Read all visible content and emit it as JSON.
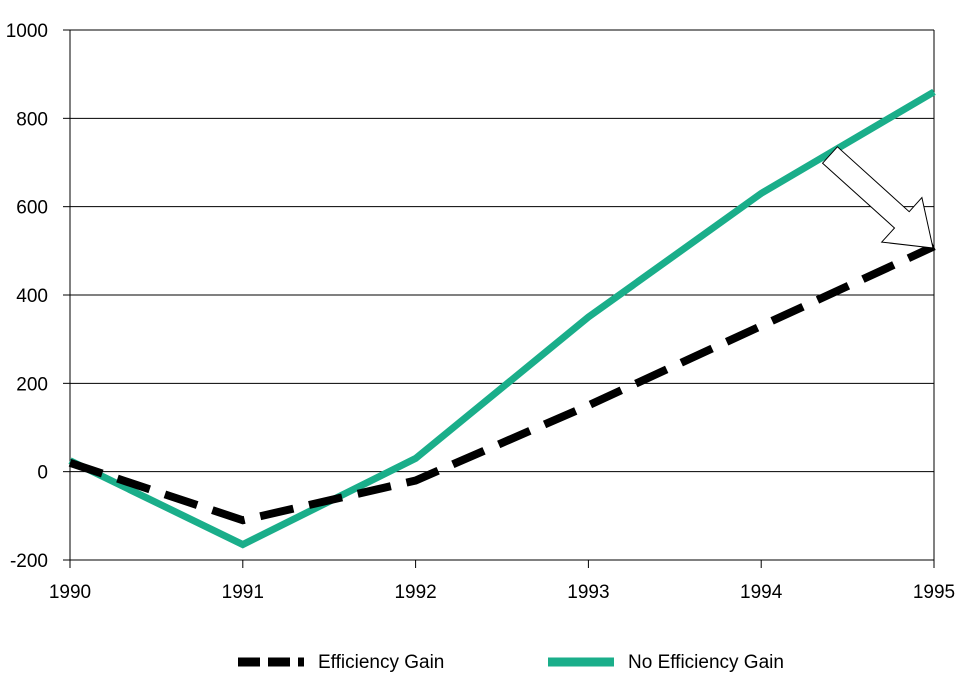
{
  "chart_data": {
    "type": "line",
    "title": "",
    "xlabel": "",
    "ylabel": "",
    "x": [
      "1990",
      "1991",
      "1992",
      "1993",
      "1994",
      "1995"
    ],
    "ylim": [
      -200,
      1000
    ],
    "yticks": [
      "-200",
      "0",
      "200",
      "400",
      "600",
      "800",
      "1000"
    ],
    "grid": true,
    "legend_position": "bottom",
    "series": [
      {
        "name": "Efficiency Gain",
        "values": [
          20,
          -110,
          -20,
          150,
          330,
          510
        ],
        "color": "#000000",
        "style": "dashed"
      },
      {
        "name": "No Efficiency Gain",
        "values": [
          25,
          -165,
          30,
          350,
          630,
          860
        ],
        "color": "#1aae8a",
        "style": "solid"
      }
    ],
    "annotations": [
      {
        "type": "arrow",
        "from_series": "No Efficiency Gain",
        "to_series": "Efficiency Gain",
        "at_x": "1995"
      }
    ]
  }
}
